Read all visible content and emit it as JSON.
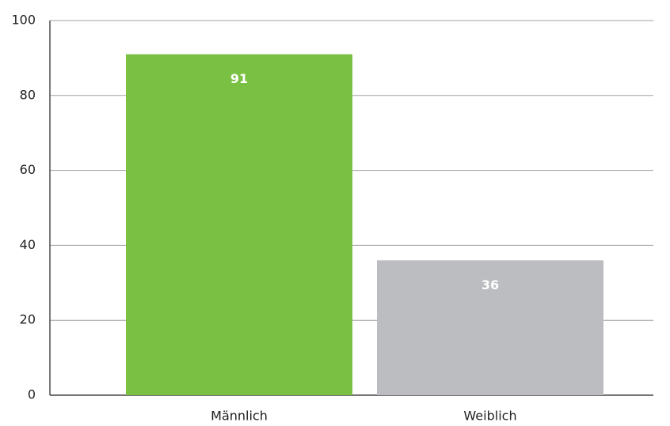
{
  "chart_data": {
    "type": "bar",
    "categories": [
      "Männlich",
      "Weiblich"
    ],
    "values": [
      91,
      36
    ],
    "colors": [
      "#7ac143",
      "#bcbdc0"
    ],
    "ylim": [
      0,
      100
    ],
    "yticks": [
      0,
      20,
      40,
      60,
      80,
      100
    ],
    "grid": true
  }
}
